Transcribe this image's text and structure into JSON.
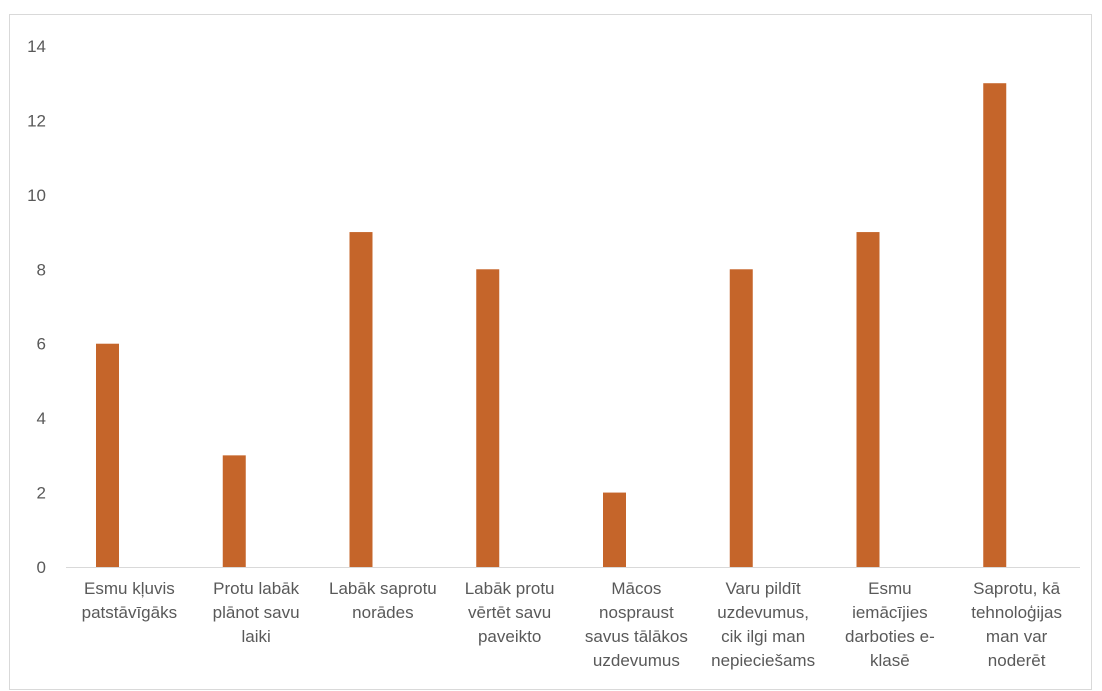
{
  "chart_data": {
    "type": "bar",
    "categories": [
      [
        "Esmu kļuvis",
        "patstāvīgāks"
      ],
      [
        "Protu labāk",
        "plānot savu",
        "laiki"
      ],
      [
        "Labāk saprotu",
        "norādes"
      ],
      [
        "Labāk protu",
        "vērtēt savu",
        "paveikto"
      ],
      [
        "Mācos",
        "nospraust",
        "savus tālākos",
        "uzdevumus"
      ],
      [
        "Varu pildīt",
        "uzdevumus,",
        "cik ilgi man",
        "nepieciešams"
      ],
      [
        "Esmu",
        "iemācījies",
        "darboties e-",
        "klasē"
      ],
      [
        "Saprotu, kā",
        "tehnoloģijas",
        "man var",
        "noderēt"
      ]
    ],
    "values": [
      6,
      3,
      9,
      8,
      2,
      8,
      9,
      13
    ],
    "ylim": [
      0,
      14
    ],
    "yticks": [
      "0",
      "2",
      "4",
      "6",
      "8",
      "10",
      "12",
      "14"
    ],
    "grid": false,
    "bar_color": "#c5652a",
    "axis_color": "#d9d9d9",
    "text_color": "#595959"
  }
}
